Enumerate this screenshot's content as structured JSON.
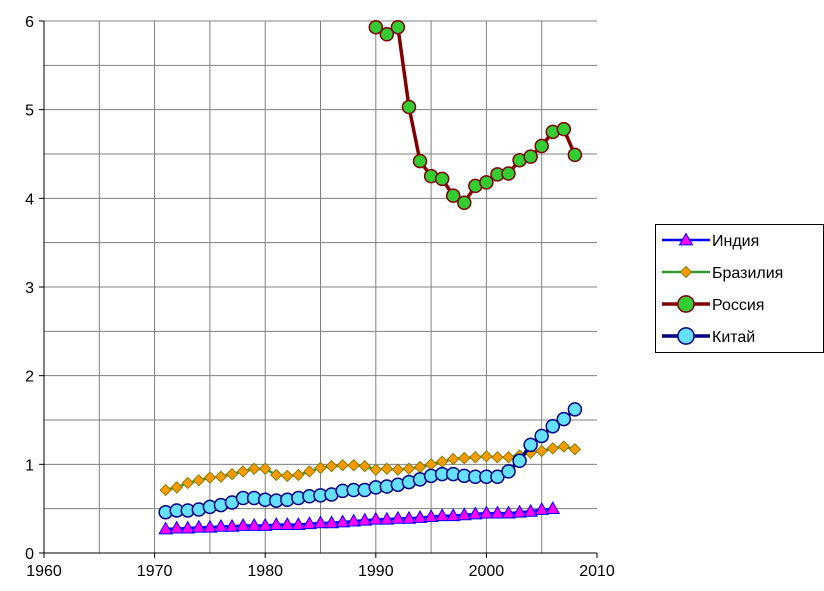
{
  "chart_data": {
    "type": "line",
    "title": "",
    "xlabel": "",
    "ylabel": "",
    "xlim": [
      1960,
      2010
    ],
    "ylim": [
      0,
      6
    ],
    "x_ticks": [
      1960,
      1970,
      1980,
      1990,
      2000,
      2010
    ],
    "y_ticks": [
      0,
      1,
      2,
      3,
      4,
      5,
      6
    ],
    "x_minor_step": 5,
    "y_minor_step": 0.5,
    "grid": true,
    "legend_position": "right",
    "series": [
      {
        "name": "Индия",
        "color": "#0000FF",
        "marker": "triangle",
        "marker_fill": "#FF00FF",
        "x": [
          1971,
          1972,
          1973,
          1974,
          1975,
          1976,
          1977,
          1978,
          1979,
          1980,
          1981,
          1982,
          1983,
          1984,
          1985,
          1986,
          1987,
          1988,
          1989,
          1990,
          1991,
          1992,
          1993,
          1994,
          1995,
          1996,
          1997,
          1998,
          1999,
          2000,
          2001,
          2002,
          2003,
          2004,
          2005,
          2006
        ],
        "values": [
          0.27,
          0.28,
          0.28,
          0.29,
          0.29,
          0.3,
          0.3,
          0.31,
          0.31,
          0.31,
          0.32,
          0.32,
          0.32,
          0.33,
          0.34,
          0.34,
          0.35,
          0.36,
          0.37,
          0.38,
          0.38,
          0.39,
          0.39,
          0.4,
          0.41,
          0.42,
          0.42,
          0.43,
          0.44,
          0.45,
          0.45,
          0.45,
          0.46,
          0.47,
          0.49,
          0.5
        ]
      },
      {
        "name": "Бразилия",
        "color": "#339933",
        "marker": "diamond",
        "marker_fill": "#FF9900",
        "x": [
          1971,
          1972,
          1973,
          1974,
          1975,
          1976,
          1977,
          1978,
          1979,
          1980,
          1981,
          1982,
          1983,
          1984,
          1985,
          1986,
          1987,
          1988,
          1989,
          1990,
          1991,
          1992,
          1993,
          1994,
          1995,
          1996,
          1997,
          1998,
          1999,
          2000,
          2001,
          2002,
          2003,
          2004,
          2005,
          2006,
          2007,
          2008
        ],
        "values": [
          0.71,
          0.74,
          0.79,
          0.82,
          0.85,
          0.86,
          0.89,
          0.92,
          0.95,
          0.95,
          0.88,
          0.87,
          0.88,
          0.92,
          0.96,
          0.98,
          0.99,
          0.99,
          0.98,
          0.94,
          0.95,
          0.94,
          0.95,
          0.97,
          1.0,
          1.03,
          1.06,
          1.07,
          1.08,
          1.09,
          1.08,
          1.08,
          1.1,
          1.13,
          1.15,
          1.18,
          1.2,
          1.17
        ]
      },
      {
        "name": "Россия",
        "color": "#800000",
        "marker": "circle",
        "marker_fill": "#33CC33",
        "x": [
          1990,
          1991,
          1992,
          1993,
          1994,
          1995,
          1996,
          1997,
          1998,
          1999,
          2000,
          2001,
          2002,
          2003,
          2004,
          2005,
          2006,
          2007,
          2008
        ],
        "values": [
          5.93,
          5.85,
          5.93,
          5.03,
          4.42,
          4.25,
          4.22,
          4.03,
          3.95,
          4.14,
          4.18,
          4.27,
          4.28,
          4.43,
          4.47,
          4.59,
          4.75,
          4.78,
          4.49
        ]
      },
      {
        "name": "Китай",
        "color": "#000080",
        "marker": "circle",
        "marker_fill": "#66E0FF",
        "x": [
          1971,
          1972,
          1973,
          1974,
          1975,
          1976,
          1977,
          1978,
          1979,
          1980,
          1981,
          1982,
          1983,
          1984,
          1985,
          1986,
          1987,
          1988,
          1989,
          1990,
          1991,
          1992,
          1993,
          1994,
          1995,
          1996,
          1997,
          1998,
          1999,
          2000,
          2001,
          2002,
          2003,
          2004,
          2005,
          2006,
          2007,
          2008
        ],
        "values": [
          0.46,
          0.48,
          0.48,
          0.49,
          0.52,
          0.54,
          0.57,
          0.62,
          0.62,
          0.6,
          0.59,
          0.6,
          0.62,
          0.64,
          0.65,
          0.66,
          0.7,
          0.71,
          0.71,
          0.74,
          0.75,
          0.77,
          0.8,
          0.83,
          0.87,
          0.89,
          0.89,
          0.87,
          0.86,
          0.86,
          0.86,
          0.92,
          1.04,
          1.22,
          1.32,
          1.43,
          1.51,
          1.62
        ]
      }
    ]
  }
}
